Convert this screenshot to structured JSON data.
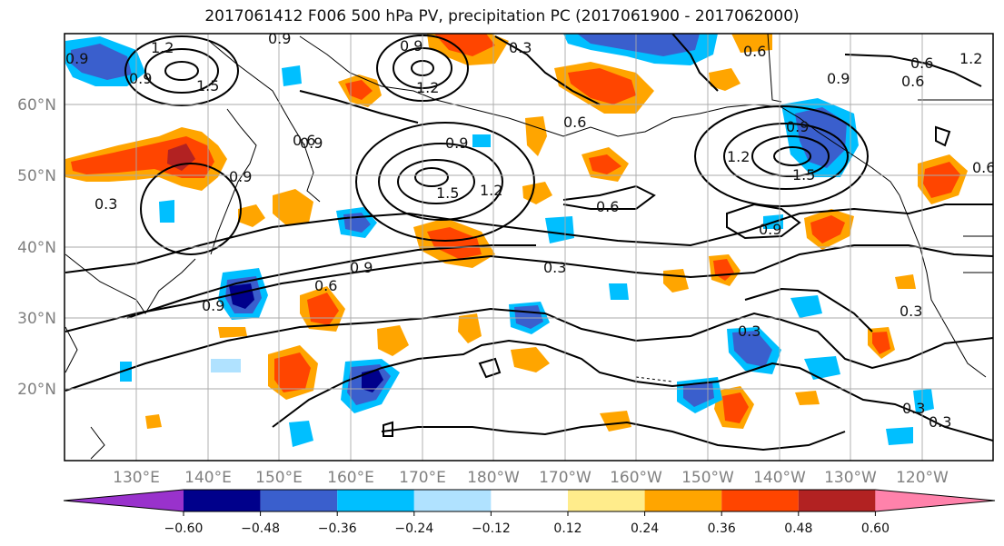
{
  "title": "2017061412 F006 500 hPa PV, precipitation PC (2017061900 - 2017062000)",
  "map": {
    "lon_labels": [
      "130°E",
      "140°E",
      "150°E",
      "160°E",
      "170°E",
      "180°W",
      "170°W",
      "160°W",
      "150°W",
      "140°W",
      "130°W",
      "120°W"
    ],
    "lat_labels": [
      "60°N",
      "50°N",
      "40°N",
      "30°N",
      "20°N"
    ],
    "contour_labels": [
      "1.2",
      "0.9",
      "0.9",
      "0.9",
      "1.5",
      "0.9",
      "0.9",
      "1.2",
      "0.9",
      "0.6",
      "0.6",
      "0.9",
      "0.6",
      "0.6",
      "0.3",
      "0.9",
      "1.5",
      "1.2",
      "0.6",
      "0.9",
      "1.2",
      "1.5",
      "0.6",
      "0.9",
      "0.3",
      "0.9",
      "0.6",
      "0.9",
      "0.3",
      "0.3",
      "0.3",
      "0.3",
      "0.6",
      "1.2",
      "0.3"
    ]
  },
  "colorbar": {
    "ticks": [
      "−0.60",
      "−0.48",
      "−0.36",
      "−0.24",
      "−0.12",
      "0.12",
      "0.24",
      "0.36",
      "0.48",
      "0.60"
    ],
    "colors": [
      "#9932cc",
      "#00008b",
      "#3a5fcd",
      "#00bfff",
      "#b0e2ff",
      "#ffffff",
      "#ffec8b",
      "#ffa500",
      "#ff4500",
      "#b22222",
      "#ff82ab"
    ]
  }
}
